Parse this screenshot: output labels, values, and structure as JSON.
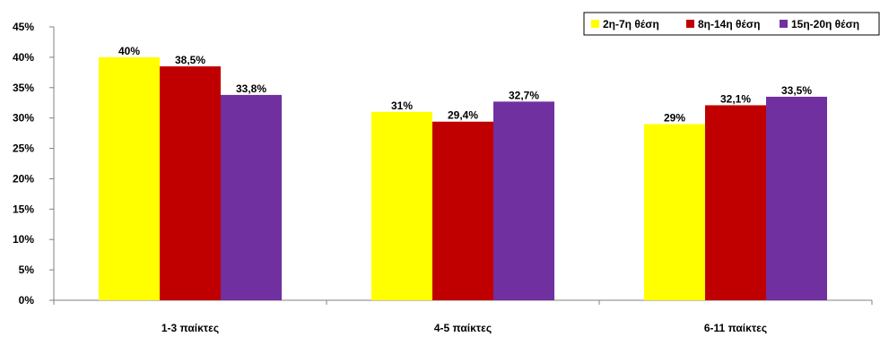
{
  "chart_data": {
    "type": "bar",
    "categories": [
      "1-3 παίκτες",
      "4-5 παίκτες",
      "6-11 παίκτες"
    ],
    "series": [
      {
        "name": "2η-7η θέση",
        "values": [
          40,
          31,
          29
        ],
        "labels": [
          "40%",
          "31%",
          "29%"
        ],
        "color": "#FFFF00"
      },
      {
        "name": "8η-14η θέση",
        "values": [
          38.5,
          29.4,
          32.1
        ],
        "labels": [
          "38,5%",
          "29,4%",
          "32,1%"
        ],
        "color": "#C00000"
      },
      {
        "name": "15η-20η θέση",
        "values": [
          33.8,
          32.7,
          33.5
        ],
        "labels": [
          "33,8%",
          "32,7%",
          "33,5%"
        ],
        "color": "#7030A0"
      }
    ],
    "y_ticks": [
      "0%",
      "5%",
      "10%",
      "15%",
      "20%",
      "25%",
      "30%",
      "35%",
      "40%",
      "45%"
    ],
    "ylim": [
      0,
      45
    ],
    "grid": false,
    "legend_position": "top-right"
  }
}
